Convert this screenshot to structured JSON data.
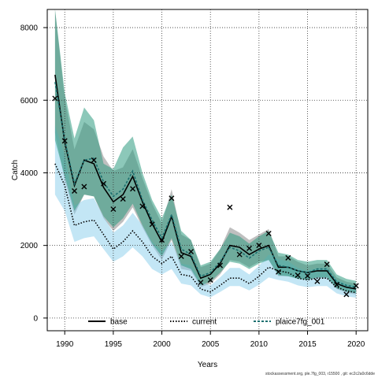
{
  "chart_data": {
    "type": "line",
    "xlabel": "Years",
    "ylabel": "Catch",
    "xlim": [
      1988.2,
      2021.2
    ],
    "ylim": [
      -350,
      8500
    ],
    "x_ticks": [
      1990,
      1995,
      2000,
      2005,
      2010,
      2015,
      2020
    ],
    "y_ticks": [
      0,
      2000,
      4000,
      6000,
      8000
    ],
    "grid": true,
    "legend_placement": "bottom",
    "x": [
      1989,
      1990,
      1991,
      1992,
      1993,
      1994,
      1995,
      1996,
      1997,
      1998,
      1999,
      2000,
      2001,
      2002,
      2003,
      2004,
      2005,
      2006,
      2007,
      2008,
      2009,
      2010,
      2011,
      2012,
      2013,
      2014,
      2015,
      2016,
      2017,
      2018,
      2019,
      2020
    ],
    "series": [
      {
        "name": "base",
        "color": "#000000",
        "style": "solid",
        "band_color": "#808080",
        "values": [
          6700,
          4850,
          3650,
          4350,
          4250,
          3600,
          3200,
          3400,
          3900,
          3200,
          2600,
          2100,
          2800,
          1800,
          1700,
          1100,
          1200,
          1500,
          2000,
          1950,
          1750,
          1900,
          2000,
          1400,
          1400,
          1300,
          1250,
          1300,
          1300,
          950,
          850,
          800
        ],
        "lower": [
          5100,
          3800,
          2850,
          3400,
          3350,
          2750,
          2400,
          2650,
          3050,
          2500,
          2000,
          1600,
          2150,
          1350,
          1300,
          850,
          950,
          1200,
          1600,
          1550,
          1400,
          1550,
          1600,
          1150,
          1150,
          1100,
          1050,
          1100,
          1100,
          800,
          700,
          650
        ],
        "upper": [
          8500,
          6050,
          4650,
          5400,
          5200,
          4450,
          4050,
          4150,
          4650,
          3850,
          3150,
          2600,
          3550,
          2300,
          2150,
          1400,
          1500,
          1900,
          2500,
          2350,
          2150,
          2300,
          2450,
          1700,
          1700,
          1550,
          1450,
          1500,
          1500,
          1120,
          1000,
          950
        ]
      },
      {
        "name": "current",
        "color": "#000000",
        "style": "dotted",
        "band_color": "#87ceeb",
        "values": [
          4250,
          3650,
          2550,
          2650,
          2700,
          2300,
          1900,
          2100,
          2400,
          2100,
          1700,
          1500,
          1700,
          1200,
          1150,
          800,
          720,
          900,
          1100,
          1100,
          950,
          1150,
          1400,
          1300,
          1250,
          1100,
          1050,
          1100,
          1100,
          850,
          750,
          700
        ],
        "lower": [
          3400,
          2950,
          2100,
          2200,
          2250,
          1900,
          1550,
          1700,
          1950,
          1700,
          1350,
          1200,
          1350,
          950,
          900,
          650,
          570,
          720,
          880,
          880,
          760,
          920,
          1120,
          1050,
          1000,
          900,
          850,
          880,
          880,
          680,
          600,
          560
        ],
        "upper": [
          5300,
          4500,
          3100,
          3250,
          3300,
          2800,
          2350,
          2550,
          2900,
          2550,
          2100,
          1850,
          2100,
          1500,
          1450,
          1000,
          900,
          1120,
          1380,
          1380,
          1200,
          1440,
          1750,
          1620,
          1560,
          1380,
          1300,
          1380,
          1380,
          1060,
          940,
          880
        ]
      },
      {
        "name": "plaice7fg_001",
        "color": "#1b6f6f",
        "style": "dashed",
        "band_color": "#2e9a80",
        "values": [
          6500,
          4900,
          3700,
          4350,
          4400,
          3750,
          3350,
          3550,
          4050,
          3250,
          2700,
          2200,
          2850,
          1900,
          1750,
          1150,
          1250,
          1550,
          1950,
          1850,
          1650,
          1850,
          1950,
          1450,
          1400,
          1300,
          1250,
          1350,
          1350,
          1000,
          900,
          850
        ],
        "lower": [
          4900,
          3900,
          2950,
          3400,
          3350,
          2800,
          2500,
          2750,
          3150,
          2550,
          2050,
          1700,
          2200,
          1450,
          1350,
          900,
          1000,
          1250,
          1550,
          1500,
          1350,
          1500,
          1600,
          1180,
          1150,
          1080,
          1050,
          1120,
          1120,
          820,
          730,
          690
        ],
        "upper": [
          8500,
          6200,
          4950,
          5800,
          5450,
          4250,
          4100,
          4700,
          5000,
          4000,
          3250,
          2750,
          3400,
          2400,
          2150,
          1450,
          1550,
          1900,
          2350,
          2250,
          2050,
          2250,
          2400,
          1800,
          1750,
          1600,
          1550,
          1600,
          1600,
          1200,
          1080,
          1020
        ]
      }
    ],
    "observed": {
      "marker": "x",
      "x": [
        1989,
        1990,
        1991,
        1992,
        1993,
        1994,
        1995,
        1996,
        1997,
        1998,
        1999,
        2000,
        2001,
        2002,
        2003,
        2004,
        2005,
        2006,
        2007,
        2008,
        2009,
        2010,
        2011,
        2012,
        2013,
        2014,
        2015,
        2016,
        2017,
        2018,
        2019,
        2020
      ],
      "values": [
        6050,
        4880,
        3500,
        3620,
        4350,
        3700,
        3000,
        3280,
        3560,
        3080,
        2580,
        2150,
        3300,
        1700,
        1830,
        980,
        1050,
        1450,
        3050,
        1750,
        1920,
        2000,
        2330,
        1270,
        1660,
        1180,
        1160,
        1010,
        1480,
        920,
        650,
        890
      ]
    }
  },
  "footnote": "stockassessment.org, ple.7fg_003, r15500 , git: ec2c2a0c6dde"
}
